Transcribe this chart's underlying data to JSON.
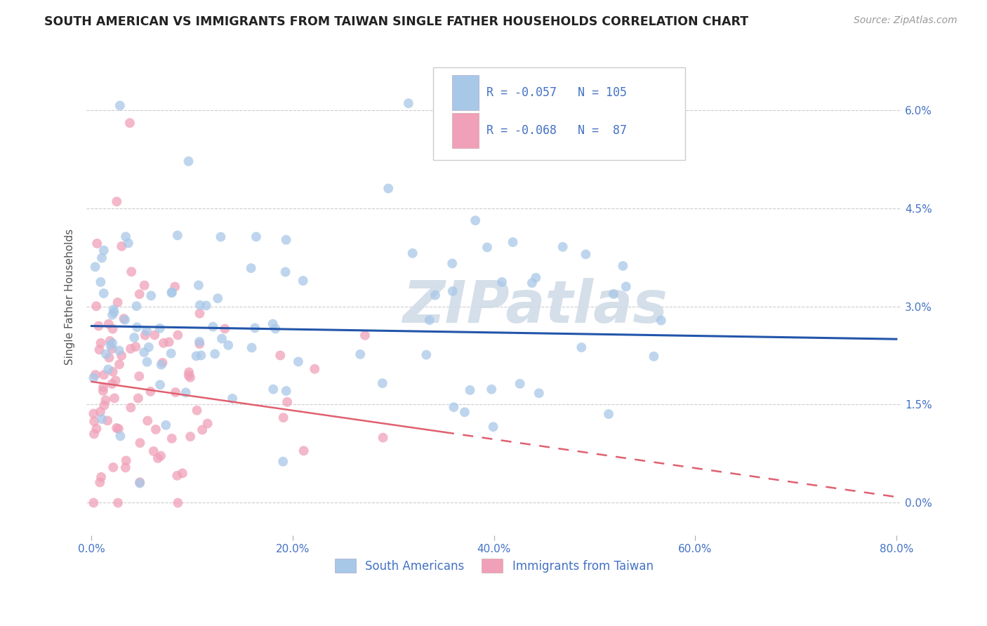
{
  "title": "SOUTH AMERICAN VS IMMIGRANTS FROM TAIWAN SINGLE FATHER HOUSEHOLDS CORRELATION CHART",
  "source": "Source: ZipAtlas.com",
  "xlim": [
    -0.005,
    0.805
  ],
  "ylim": [
    -0.005,
    0.068
  ],
  "x_tick_vals": [
    0.0,
    0.2,
    0.4,
    0.6,
    0.8
  ],
  "y_tick_vals": [
    0.0,
    0.015,
    0.03,
    0.045,
    0.06
  ],
  "ylabel": "Single Father Households",
  "legend_labels": [
    "South Americans",
    "Immigrants from Taiwan"
  ],
  "blue_color": "#A8C8E8",
  "pink_color": "#F0A0B8",
  "blue_line_color": "#2255AA",
  "pink_line_color": "#E06070",
  "pink_line_solid_end": 0.35,
  "R_blue": -0.057,
  "N_blue": 105,
  "R_pink": -0.068,
  "N_pink": 87,
  "blue_intercept": 0.027,
  "blue_slope": -0.0025,
  "pink_intercept": 0.0185,
  "pink_slope": -0.022,
  "background_color": "#FFFFFF",
  "grid_color": "#CCCCCC",
  "title_color": "#222222",
  "axis_label_color": "#4472C4",
  "ylabel_color": "#555555",
  "watermark_text": "ZIPatlas",
  "watermark_color": "#D0DCE8",
  "watermark_alpha": 0.9,
  "watermark_fontsize": 60,
  "scatter_size": 100,
  "scatter_alpha": 0.75,
  "seed": 42
}
